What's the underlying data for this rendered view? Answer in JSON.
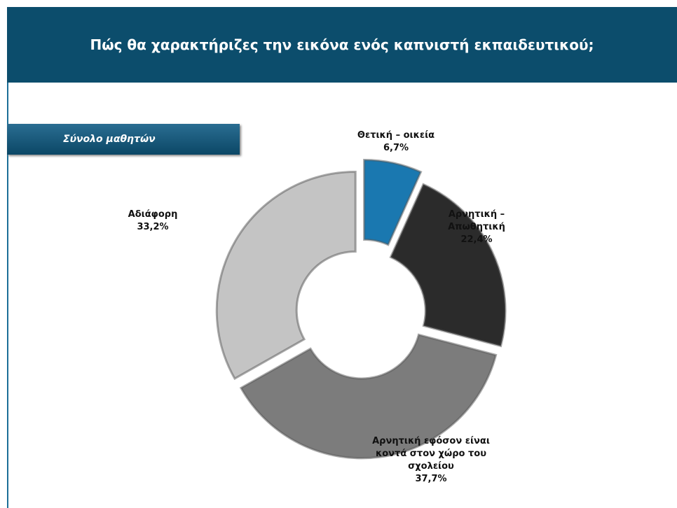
{
  "chart_data": {
    "type": "pie",
    "title": "Πώς θα χαρακτήριζες την εικόνα ενός καπνιστή εκπαιδευτικού;",
    "subtitle": "Σύνολο μαθητών",
    "categories": [
      "Θετική – οικεία",
      "Αρνητική – Απωθητική",
      "Αρνητική εφόσον είναι κοντά στον χώρο του σχολείου",
      "Αδιάφορη"
    ],
    "values": [
      6.7,
      22.4,
      37.7,
      33.2
    ],
    "value_labels": [
      "6,7%",
      "22,4%",
      "37,7%",
      "33,2%"
    ],
    "colors": [
      "#1a78b0",
      "#2b2b2b",
      "#7c7c7c",
      "#c4c4c4"
    ]
  }
}
